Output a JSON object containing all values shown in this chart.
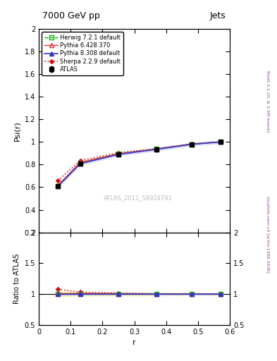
{
  "title_left": "7000 GeV pp",
  "title_right": "Jets",
  "ylabel_main": "Psi(r)",
  "ylabel_ratio": "Ratio to ATLAS",
  "xlabel": "r",
  "right_label_top": "Rivet 3.1.10, ≥ 3.5M events",
  "right_label_bottom": "mcplots.cern.ch [arXiv:1306.3436]",
  "watermark": "ATLAS_2011_S8924791",
  "x": [
    0.06,
    0.13,
    0.25,
    0.37,
    0.48,
    0.57
  ],
  "atlas_y": [
    0.61,
    0.81,
    0.89,
    0.935,
    0.98,
    1.0
  ],
  "atlas_yerr": [
    0.005,
    0.005,
    0.005,
    0.005,
    0.005,
    0.005
  ],
  "herwig_y": [
    0.61,
    0.81,
    0.895,
    0.937,
    0.98,
    1.0
  ],
  "herwig_band_lo": [
    0.597,
    0.797,
    0.882,
    0.924,
    0.967,
    0.987
  ],
  "herwig_band_hi": [
    0.623,
    0.823,
    0.908,
    0.95,
    0.993,
    1.013
  ],
  "pythia6_y": [
    0.615,
    0.82,
    0.895,
    0.938,
    0.982,
    1.0
  ],
  "pythia8_y": [
    0.608,
    0.808,
    0.89,
    0.935,
    0.979,
    1.0
  ],
  "sherpa_y": [
    0.658,
    0.835,
    0.905,
    0.94,
    0.983,
    1.0
  ],
  "atlas_color": "#000000",
  "herwig_color": "#00bb00",
  "pythia6_color": "#ee3333",
  "pythia8_color": "#3333cc",
  "sherpa_color": "#cc1111",
  "herwig_band_color": "#ddffdd",
  "pythia8_band_color": "#ddddff",
  "yellow_band_color": "#eeee00",
  "ylim_main": [
    0.2,
    2.0
  ],
  "ylim_ratio": [
    0.5,
    2.0
  ],
  "xlim": [
    0.0,
    0.6
  ],
  "ratio_herwig_y": [
    1.0,
    1.0,
    1.006,
    1.002,
    1.0,
    1.0
  ],
  "ratio_pythia6_y": [
    1.008,
    1.012,
    1.006,
    1.003,
    1.002,
    1.0
  ],
  "ratio_pythia8_y": [
    0.997,
    0.998,
    1.0,
    1.0,
    0.999,
    1.0
  ],
  "ratio_sherpa_y": [
    1.079,
    1.031,
    1.017,
    1.005,
    1.003,
    1.0
  ],
  "ratio_herwig_band_lo": [
    0.988,
    0.988,
    0.994,
    0.99,
    0.988,
    0.988
  ],
  "ratio_herwig_band_hi": [
    1.012,
    1.012,
    1.018,
    1.014,
    1.012,
    1.012
  ],
  "ratio_pythia8_band_lo": [
    0.985,
    0.986,
    0.988,
    0.988,
    0.987,
    0.988
  ],
  "ratio_pythia8_band_hi": [
    1.009,
    1.01,
    1.012,
    1.012,
    1.011,
    1.012
  ],
  "ratio_yellow_band_lo": [
    0.975,
    0.978,
    0.982,
    0.985,
    0.987,
    0.988
  ],
  "ratio_yellow_band_hi": [
    1.025,
    1.022,
    1.018,
    1.015,
    1.013,
    1.012
  ]
}
